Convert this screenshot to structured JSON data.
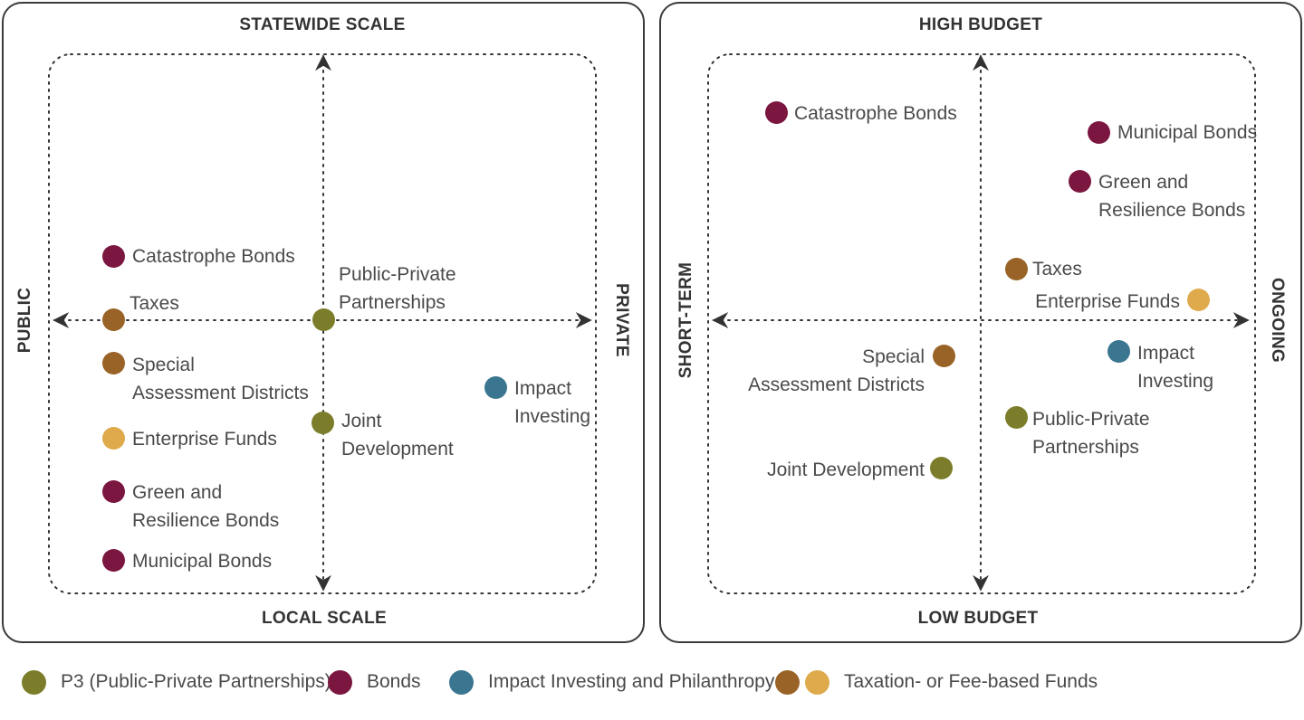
{
  "colors": {
    "p3": "#7b7d2a",
    "bonds": "#7b1640",
    "impact": "#3a7690",
    "tax_dark": "#996327",
    "tax_light": "#deaa4c"
  },
  "left_panel": {
    "top_label": "STATEWIDE SCALE",
    "bottom_label": "LOCAL SCALE",
    "left_label": "PUBLIC",
    "right_label": "PRIVATE",
    "items": {
      "catastrophe_bonds": "Catastrophe Bonds",
      "taxes": "Taxes",
      "special_assessment": "Special\nAssessment Districts",
      "enterprise_funds": "Enterprise Funds",
      "green_resilience": "Green and\nResilience Bonds",
      "municipal_bonds": "Municipal Bonds",
      "public_private": "Public-Private\nPartnerships",
      "joint_development": "Joint\nDevelopment",
      "impact_investing": "Impact\nInvesting"
    }
  },
  "right_panel": {
    "top_label": "HIGH BUDGET",
    "bottom_label": "LOW BUDGET",
    "left_label": "SHORT-TERM",
    "right_label": "ONGOING",
    "items": {
      "catastrophe_bonds": "Catastrophe Bonds",
      "municipal_bonds": "Municipal Bonds",
      "green_resilience": "Green and\nResilience Bonds",
      "taxes": "Taxes",
      "enterprise_funds": "Enterprise Funds",
      "special_assessment": "Special\nAssessment Districts",
      "impact_investing": "Impact\nInvesting",
      "public_private": "Public-Private\nPartnerships",
      "joint_development": "Joint Development"
    }
  },
  "legend": {
    "p3": "P3 (Public-Private Partnerships)",
    "bonds": "Bonds",
    "impact": "Impact Investing and Philanthropy",
    "taxation": "Taxation- or Fee-based Funds"
  }
}
